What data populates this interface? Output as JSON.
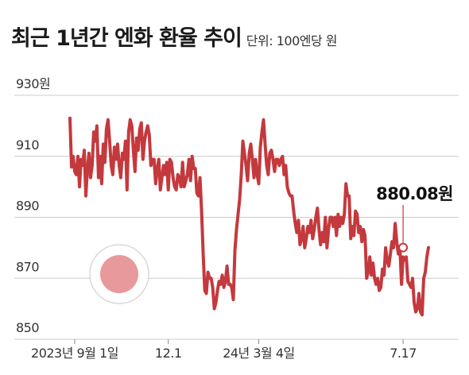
{
  "header": {
    "title": "최근 1년간 엔화 환율 추이",
    "unit": "단위: 100엔당 원"
  },
  "colors": {
    "line": "#c4393d",
    "grid": "#cccccc",
    "circle_fill": "#e8999b",
    "circle_ring": "#d9d9d9",
    "axis_text": "#333333"
  },
  "chart_data": {
    "type": "line",
    "title": "최근 1년간 엔화 환율 추이",
    "subtitle": "단위: 100엔당 원",
    "ylim": [
      850,
      930
    ],
    "y_ticks": [
      850,
      870,
      890,
      910,
      930
    ],
    "y_tick_labels": [
      "850",
      "870",
      "890",
      "910",
      "930원"
    ],
    "x_ticks": [
      {
        "label": "2023년 9월 1일",
        "index": 3
      },
      {
        "label": "12.1",
        "index": 62
      },
      {
        "label": "24년 3월 4일",
        "index": 119
      },
      {
        "label": "7.17",
        "index": 210
      }
    ],
    "grid": true,
    "annotation": {
      "text": "880.08원",
      "index": 210,
      "value": 880.08
    },
    "series": [
      {
        "values": [
          922.5,
          906.5,
          910,
          905,
          904,
          910,
          900,
          909,
          907,
          912,
          897,
          906,
          911,
          903,
          907,
          918,
          915,
          920,
          903,
          910,
          901,
          914,
          908,
          919,
          922,
          915,
          907,
          904,
          913,
          909,
          914,
          907,
          903,
          911,
          909,
          915,
          899,
          918,
          922,
          920,
          912,
          905,
          916,
          912,
          919,
          921,
          909,
          915,
          918,
          920,
          917,
          907,
          909,
          909,
          901,
          906,
          909,
          899,
          903,
          907,
          904,
          908,
          899,
          909,
          908,
          903,
          900,
          899,
          904,
          903,
          900,
          908,
          900,
          902,
          904,
          909,
          902,
          910,
          906,
          906,
          898,
          897,
          903,
          892,
          878,
          866,
          865,
          872,
          870,
          870,
          867,
          860,
          862,
          866,
          869,
          868,
          871,
          867,
          869,
          874,
          868,
          868,
          867,
          863,
          879,
          886,
          891,
          896,
          904,
          915,
          911,
          907,
          902,
          911,
          914,
          909,
          903,
          909,
          904,
          901,
          913,
          918,
          922,
          914,
          907,
          904,
          911,
          912,
          909,
          905,
          909,
          909,
          907,
          909,
          910,
          904,
          907,
          900,
          898,
          897,
          897,
          892,
          888,
          885,
          889,
          881,
          883,
          887,
          880,
          883,
          887,
          885,
          889,
          883,
          886,
          890,
          893,
          886,
          881,
          885,
          882,
          890,
          880,
          886,
          890,
          890,
          887,
          890,
          884,
          891,
          887,
          890,
          888,
          891,
          901,
          897,
          897,
          883,
          887,
          884,
          892,
          891,
          885,
          887,
          882,
          886,
          884,
          870,
          872,
          877,
          871,
          875,
          870,
          868,
          870,
          866,
          867,
          873,
          871,
          880,
          876,
          874,
          878,
          882,
          880,
          888,
          882,
          878,
          880,
          868,
          877,
          876,
          877,
          869,
          868,
          867,
          870,
          862,
          859,
          860,
          865,
          859,
          858,
          870,
          872,
          877,
          880.08
        ]
      }
    ]
  }
}
